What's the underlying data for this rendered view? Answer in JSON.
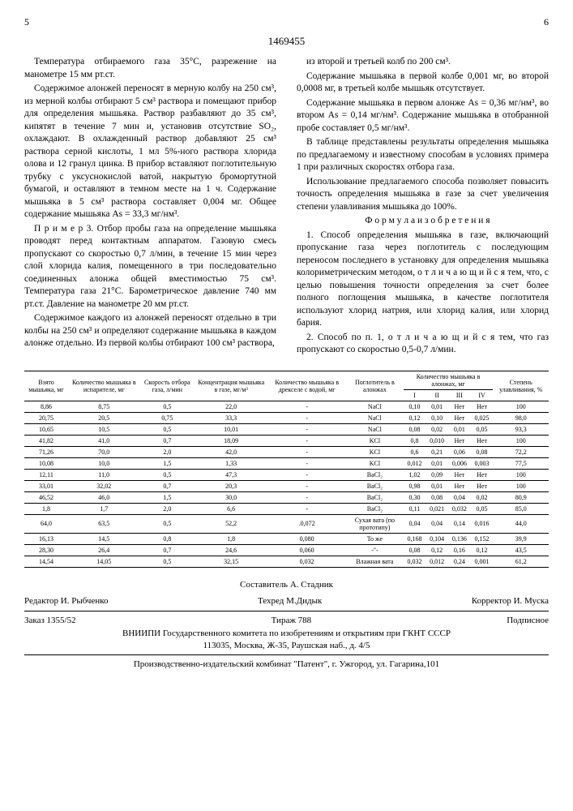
{
  "patent_number": "1469455",
  "page_left": "5",
  "page_right": "6",
  "left_column": {
    "p1": "Температура отбираемого газа 35°С, разрежение на манометре 15 мм рт.ст.",
    "p2": "Содержимое алонжей переносят в мерную колбу на 250 см³, из мерной колбы отбирают 5 см³ раствора и помещают прибор для определения мышьяка. Раствор разбавляют до 35 см³, кипятят в течение 7 мин и, установив отсутствие SO₂, охлаждают. В охлажденный раствор добавляют 25 см³ раствора серной кислоты, 1 мл 5%-ного раствора хлорида олова и 12 гранул цинка. В прибор вставляют поглотительную трубку с уксуснокислой ватой, накрытую бромортутной бумагой, и оставляют в темном месте на 1 ч. Содержание мышьяка в 5 см³ раствора составляет 0,004 мг. Общее содержание мышьяка As = 33,3 мг/нм³.",
    "p3": "П р и м е р  3. Отбор пробы газа на определение мышьяка проводят перед контактным аппаратом. Газовую смесь пропускают со скоростью 0,7 л/мин, в течение 15 мин через слой хлорида калия, помещенного в три последовательно соединенных алонжа общей вместимостью 75 см³. Температура газа 21°С. Барометрическое давление 740 мм рт.ст. Давление на манометре 20 мм рт.ст.",
    "p4": "Содержимое каждого из алонжей переносят отдельно в три колбы на 250 см³ и определяют содержание мышьяка в каждом алонже отдельно. Из первой колбы отбирают 100 см³ раствора,"
  },
  "right_column": {
    "p1": "из второй и третьей колб по 200 см³.",
    "p2": "Содержание мышьяка в первой колбе 0,001 мг, во второй 0,0008 мг, в третьей колбе мышьяк отсутствует.",
    "p3": "Содержание мышьяка в первом алонже As = 0,36 мг/нм³, во втором As = 0,14 мг/нм³. Содержание мышьяка в отобранной пробе составляет 0,5 мг/нм³.",
    "p4": "В таблице представлены результаты определения мышьяка по предлагаемому и известному способам в условиях примера 1 при различных скоростях отбора газа.",
    "p5": "Использование предлагаемого способа позволяет повысить точность определения мышьяка в газе за счет увеличения степени улавливания мышьяка до 100%.",
    "formula_title": "Ф о р м у л а  и з о б р е т е н и я",
    "claim1": "1. Способ определения мышьяка в газе, включающий пропускание газа через поглотитель с последующим переносом последнего в установку для определения мышьяка колориметрическим методом, о т л и ч а ю щ и й с я тем, что, с целью повышения точности определения за счет более полного поглощения мышьяка, в качестве поглотителя используют хлорид натрия, или хлорид калия, или хлорид бария.",
    "claim2": "2. Способ по п. 1, о т л и ч а ю щ и й с я тем, что газ пропускают со скоростью 0,5-0,7 л/мин."
  },
  "table": {
    "headers": [
      "Взято мышьяка, мг",
      "Количество мышьяка в испарителе, мг",
      "Скорость отбора газа, л/мин",
      "Концентрация мышьяка в газе, мг/м³",
      "Количество мышьяка в дрекселе с водой, мг",
      "Поглотитель в алонжах",
      "I",
      "II",
      "III",
      "IV",
      "Степень улавливания, %"
    ],
    "subheader": "Количество мышьяка в алонжах, мг",
    "rows": [
      [
        "8,86",
        "8,75",
        "0,5",
        "22,0",
        "-",
        "NaCl",
        "0,10",
        "0,01",
        "Нет",
        "Нет",
        "100"
      ],
      [
        "20,75",
        "20,5",
        "0,75",
        "33,3",
        "-",
        "NaCl",
        "0,12",
        "0,10",
        "Нет",
        "0,025",
        "98,0"
      ],
      [
        "10,65",
        "10,5",
        "0,5",
        "10,01",
        "-",
        "NaCl",
        "0,08",
        "0,02",
        "0,01",
        "0,05",
        "93,3"
      ],
      [
        "41,82",
        "41,0",
        "0,7",
        "18,09",
        "-",
        "KCl",
        "0,8",
        "0,010",
        "Нет",
        "Нет",
        "100"
      ],
      [
        "71,26",
        "70,0",
        "2,0",
        "42,0",
        "-",
        "KCl",
        "0,6",
        "0,21",
        "0,06",
        "0,08",
        "72,2"
      ],
      [
        "10,08",
        "10,0",
        "1,5",
        "1,33",
        "-",
        "KCl",
        "0,012",
        "0,01",
        "0,006",
        "0,003",
        "77,5"
      ],
      [
        "12,11",
        "11,0",
        "0,5",
        "47,3",
        "-",
        "BaCl₂",
        "1,02",
        "0,09",
        "Нет",
        "Нет",
        "100"
      ],
      [
        "33,01",
        "32,02",
        "0,7",
        "20,3",
        "-",
        "BaCl₂",
        "0,98",
        "0,01",
        "Нет",
        "Нет",
        "100"
      ],
      [
        "46,52",
        "46,0",
        "1,5",
        "30,0",
        "-",
        "BaCl₂",
        "0,30",
        "0,08",
        "0,04",
        "0,02",
        "80,9"
      ],
      [
        "1,8",
        "1,7",
        "2,0",
        "6,6",
        "-",
        "BaCl₂",
        "0,11",
        "0,021",
        "0,032",
        "0,05",
        "85,0"
      ],
      [
        "64,0",
        "63,5",
        "0,5",
        "52,2",
        ".0,072",
        "Сухая вата (по прототипу)",
        "0,04",
        "0,04",
        "0,14",
        "0,016",
        "44,0"
      ],
      [
        "16,13",
        "14,5",
        "0,8",
        "1,8",
        "0,080",
        "То же",
        "0,168",
        "0,104",
        "0,136",
        "0,152",
        "39,9"
      ],
      [
        "28,30",
        "26,4",
        "0,7",
        "24,6",
        "0,060",
        "-\"-",
        "0,08",
        "0,12",
        "0,16",
        "0,12",
        "43,5"
      ],
      [
        "14,54",
        "14,05",
        "0,5",
        "32,15",
        "0,032",
        "Влажная вата",
        "0,032",
        "0,012",
        "0,24",
        "0,001",
        "61,2"
      ]
    ]
  },
  "credits": {
    "compiler": "Составитель А. Стадник",
    "editor": "Редактор И. Рыбченко",
    "tech_editor": "Техред М.Дидык",
    "corrector": "Корректор И. Муска"
  },
  "order": {
    "order_no": "Заказ 1355/52",
    "circulation": "Тираж 788",
    "subscription": "Подписное"
  },
  "footer": {
    "line1": "ВНИИПИ Государственного комитета по изобретениям и открытиям при ГКНТ СССР",
    "line2": "113035, Москва, Ж-35, Раушская наб., д. 4/5",
    "line3": "Производственно-издательский комбинат \"Патент\", г. Ужгород, ул. Гагарина,101"
  }
}
